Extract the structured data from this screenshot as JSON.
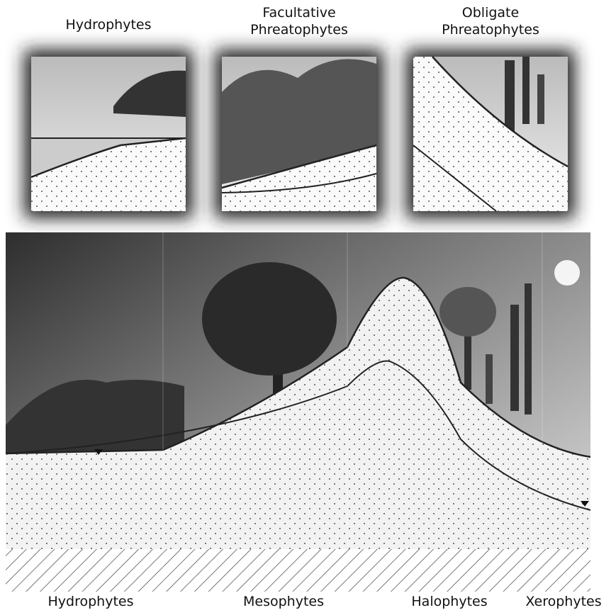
{
  "panels": [
    {
      "label_lines": [
        "Hydrophytes"
      ]
    },
    {
      "label_lines": [
        "Facultative",
        "Phreatophytes"
      ]
    },
    {
      "label_lines": [
        "Obligate",
        "Phreatophytes"
      ]
    }
  ],
  "zones": [
    {
      "label": "Hydrophytes"
    },
    {
      "label": "Mesophytes"
    },
    {
      "label": "Halophytes"
    },
    {
      "label": "Xerophytes"
    }
  ]
}
